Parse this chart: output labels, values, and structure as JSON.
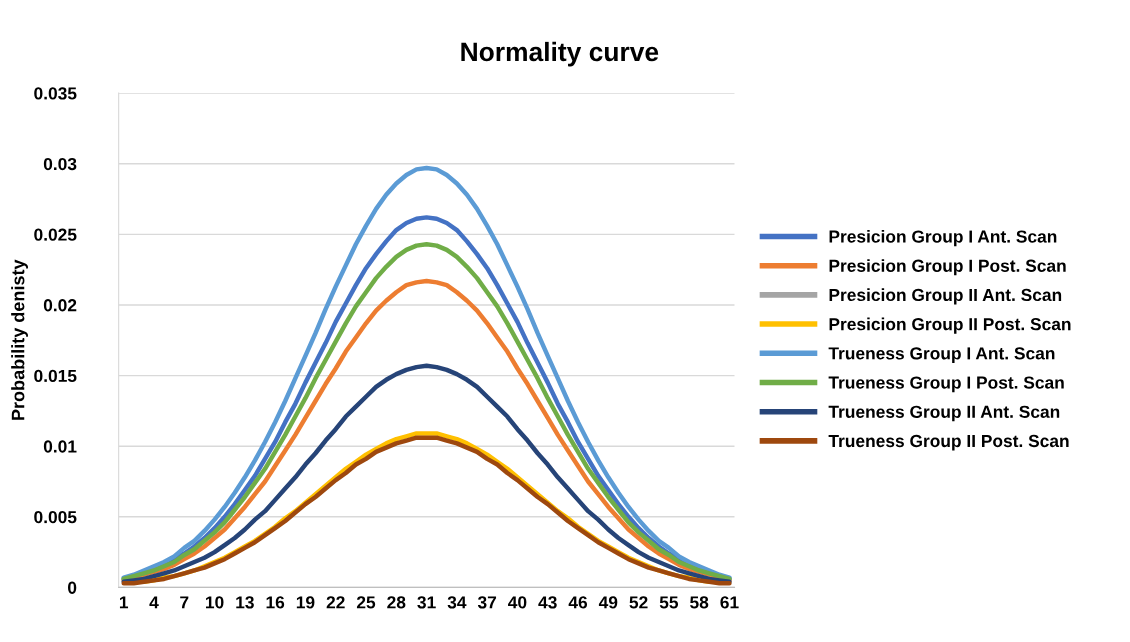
{
  "chart_data": {
    "type": "line",
    "title": "Normality curve",
    "ylabel": "Probability denisty",
    "categories": [
      "1",
      null,
      null,
      "4",
      null,
      null,
      "7",
      null,
      null,
      "10",
      null,
      null,
      "13",
      null,
      null,
      "16",
      null,
      null,
      "19",
      null,
      null,
      "22",
      null,
      null,
      "25",
      null,
      null,
      "28",
      null,
      null,
      "31",
      null,
      null,
      "34",
      null,
      null,
      "37",
      null,
      null,
      "40",
      null,
      null,
      "43",
      null,
      null,
      "46",
      null,
      null,
      "49",
      null,
      null,
      "52",
      null,
      null,
      "55",
      null,
      null,
      "58",
      null,
      null,
      "61"
    ],
    "series": [
      {
        "name": "Presicion Group I Ant. Scan",
        "color": "#4472c4",
        "values": [
          0.0006,
          0.0008,
          0.001,
          0.0013,
          0.0016,
          0.002,
          0.0024,
          0.0029,
          0.0035,
          0.0042,
          0.005,
          0.0059,
          0.0069,
          0.0079,
          0.0091,
          0.0103,
          0.0117,
          0.013,
          0.0145,
          0.0159,
          0.0173,
          0.0188,
          0.0201,
          0.0214,
          0.0226,
          0.0236,
          0.0245,
          0.0253,
          0.0258,
          0.0261,
          0.0262,
          0.0261,
          0.0258,
          0.0253,
          0.0245,
          0.0236,
          0.0226,
          0.0214,
          0.0201,
          0.0188,
          0.0173,
          0.0159,
          0.0145,
          0.013,
          0.0117,
          0.0103,
          0.0091,
          0.0079,
          0.0069,
          0.0059,
          0.005,
          0.0042,
          0.0035,
          0.0029,
          0.0024,
          0.002,
          0.0016,
          0.0013,
          0.001,
          0.0008,
          0.0006
        ]
      },
      {
        "name": "Presicion Group I Post. Scan",
        "color": "#ed7d31",
        "values": [
          0.0005,
          0.0007,
          0.0009,
          0.0011,
          0.0013,
          0.0016,
          0.002,
          0.0024,
          0.0029,
          0.0035,
          0.0041,
          0.0049,
          0.0057,
          0.0066,
          0.0075,
          0.0086,
          0.0097,
          0.0108,
          0.012,
          0.0132,
          0.0144,
          0.0155,
          0.0167,
          0.0177,
          0.0187,
          0.0196,
          0.0203,
          0.0209,
          0.0214,
          0.0216,
          0.0217,
          0.0216,
          0.0214,
          0.0209,
          0.0203,
          0.0196,
          0.0187,
          0.0177,
          0.0167,
          0.0155,
          0.0144,
          0.0132,
          0.012,
          0.0108,
          0.0097,
          0.0086,
          0.0075,
          0.0066,
          0.0057,
          0.0049,
          0.0041,
          0.0035,
          0.0029,
          0.0024,
          0.002,
          0.0016,
          0.0013,
          0.0011,
          0.0009,
          0.0007,
          0.0005
        ]
      },
      {
        "name": "Presicion Group II Ant. Scan",
        "color": "#a5a5a5",
        "values": [
          null,
          null,
          null,
          null,
          null,
          null,
          null,
          null,
          null,
          null,
          null,
          null,
          null,
          null,
          null,
          null,
          null,
          null,
          null,
          null,
          null,
          null,
          null,
          null,
          null,
          null,
          null,
          null,
          null,
          null,
          null,
          null,
          null,
          null,
          null,
          null,
          null,
          null,
          null,
          null,
          null,
          null,
          null,
          null,
          null,
          null,
          null,
          null,
          null,
          null,
          null,
          null,
          null,
          null,
          null,
          null,
          null,
          null,
          null,
          null,
          null
        ]
      },
      {
        "name": "Presicion Group II Post. Scan",
        "color": "#ffc000",
        "values": [
          null,
          null,
          0.0004,
          0.0005,
          0.0007,
          0.0008,
          0.001,
          0.0012,
          0.0015,
          0.0018,
          0.0021,
          0.0025,
          0.0029,
          0.0033,
          0.0038,
          0.0043,
          0.0049,
          0.0054,
          0.006,
          0.0066,
          0.0072,
          0.0078,
          0.0084,
          0.0089,
          0.0094,
          0.0098,
          0.0102,
          0.0105,
          0.0107,
          0.0109,
          0.0109,
          0.0109,
          0.0107,
          0.0105,
          0.0102,
          0.0098,
          0.0094,
          0.0089,
          0.0084,
          0.0078,
          0.0072,
          0.0066,
          0.006,
          0.0054,
          0.0049,
          0.0043,
          0.0038,
          0.0033,
          0.0029,
          0.0025,
          0.0021,
          0.0018,
          0.0015,
          0.0012,
          0.001,
          0.0008,
          0.0007,
          0.0005,
          0.0004,
          null,
          null
        ]
      },
      {
        "name": "Trueness Group I Ant. Scan",
        "color": "#5b9bd5",
        "values": [
          0.0007,
          0.0009,
          0.0012,
          0.0015,
          0.0018,
          0.0022,
          0.0028,
          0.0033,
          0.004,
          0.0048,
          0.0057,
          0.0067,
          0.0078,
          0.009,
          0.0103,
          0.0117,
          0.0132,
          0.0148,
          0.0164,
          0.018,
          0.0197,
          0.0213,
          0.0228,
          0.0243,
          0.0256,
          0.0268,
          0.0278,
          0.0286,
          0.0292,
          0.0296,
          0.0297,
          0.0296,
          0.0292,
          0.0286,
          0.0278,
          0.0268,
          0.0256,
          0.0243,
          0.0228,
          0.0213,
          0.0197,
          0.018,
          0.0164,
          0.0148,
          0.0132,
          0.0117,
          0.0103,
          0.009,
          0.0078,
          0.0067,
          0.0057,
          0.0048,
          0.004,
          0.0033,
          0.0028,
          0.0022,
          0.0018,
          0.0015,
          0.0012,
          0.0009,
          0.0007
        ]
      },
      {
        "name": "Trueness Group I Post. Scan",
        "color": "#70ad47",
        "values": [
          0.0006,
          0.0008,
          0.001,
          0.0012,
          0.0015,
          0.0018,
          0.0023,
          0.0027,
          0.0033,
          0.0039,
          0.0046,
          0.0055,
          0.0064,
          0.0074,
          0.0084,
          0.0096,
          0.0108,
          0.0121,
          0.0134,
          0.0148,
          0.0161,
          0.0174,
          0.0187,
          0.0199,
          0.0209,
          0.0219,
          0.0227,
          0.0234,
          0.0239,
          0.0242,
          0.0243,
          0.0242,
          0.0239,
          0.0234,
          0.0227,
          0.0219,
          0.0209,
          0.0199,
          0.0187,
          0.0174,
          0.0161,
          0.0148,
          0.0134,
          0.0121,
          0.0108,
          0.0096,
          0.0084,
          0.0074,
          0.0064,
          0.0055,
          0.0046,
          0.0039,
          0.0033,
          0.0027,
          0.0023,
          0.0018,
          0.0015,
          0.0012,
          0.001,
          0.0008,
          0.0006
        ]
      },
      {
        "name": "Trueness Group II Ant. Scan",
        "color": "#264478",
        "values": [
          0.0004,
          0.0005,
          0.0006,
          0.0008,
          0.001,
          0.0012,
          0.0015,
          0.0018,
          0.0021,
          0.0025,
          0.003,
          0.0035,
          0.0041,
          0.0048,
          0.0054,
          0.0062,
          0.007,
          0.0078,
          0.0087,
          0.0095,
          0.0104,
          0.0112,
          0.0121,
          0.0128,
          0.0135,
          0.0142,
          0.0147,
          0.0151,
          0.0154,
          0.0156,
          0.0157,
          0.0156,
          0.0154,
          0.0151,
          0.0147,
          0.0142,
          0.0135,
          0.0128,
          0.0121,
          0.0112,
          0.0104,
          0.0095,
          0.0087,
          0.0078,
          0.007,
          0.0062,
          0.0054,
          0.0048,
          0.0041,
          0.0035,
          0.003,
          0.0025,
          0.0021,
          0.0018,
          0.0015,
          0.0012,
          0.001,
          0.0008,
          0.0006,
          0.0005,
          0.0004
        ]
      },
      {
        "name": "Trueness Group II Post. Scan",
        "color": "#9e480e",
        "values": [
          0.0003,
          0.0003,
          0.0004,
          0.0005,
          0.0006,
          0.0008,
          0.001,
          0.0012,
          0.0014,
          0.0017,
          0.002,
          0.0024,
          0.0028,
          0.0032,
          0.0037,
          0.0042,
          0.0047,
          0.0053,
          0.0059,
          0.0064,
          0.007,
          0.0076,
          0.0081,
          0.0087,
          0.0091,
          0.0096,
          0.0099,
          0.0102,
          0.0104,
          0.0106,
          0.0106,
          0.0106,
          0.0104,
          0.0102,
          0.0099,
          0.0096,
          0.0091,
          0.0087,
          0.0081,
          0.0076,
          0.007,
          0.0064,
          0.0059,
          0.0053,
          0.0047,
          0.0042,
          0.0037,
          0.0032,
          0.0028,
          0.0024,
          0.002,
          0.0017,
          0.0014,
          0.0012,
          0.001,
          0.0008,
          0.0006,
          0.0005,
          0.0004,
          0.0003,
          0.0003
        ]
      }
    ],
    "ylim": [
      0,
      0.035
    ],
    "yticks": [
      0,
      0.005,
      0.01,
      0.015,
      0.02,
      0.025,
      0.03,
      0.035
    ],
    "grid": "y",
    "legend": "right",
    "marker": "none",
    "line_style": "solid"
  }
}
